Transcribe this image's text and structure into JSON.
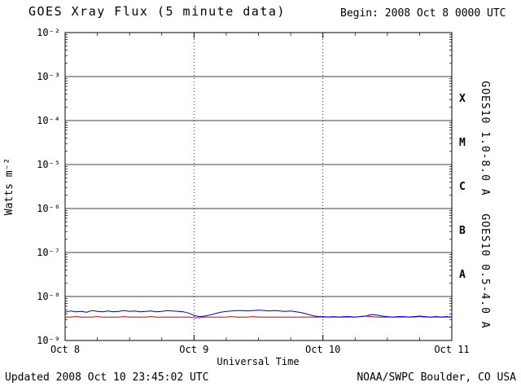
{
  "title": "GOES Xray Flux (5 minute data)",
  "begin_label": "Begin: 2008 Oct 8 0000 UTC",
  "footer": {
    "updated": "Updated 2008 Oct 10 23:45:02 UTC",
    "source": "NOAA/SWPC Boulder, CO USA"
  },
  "chart_data": {
    "type": "line",
    "title": "GOES Xray Flux (5 minute data)",
    "xlabel": "Universal Time",
    "ylabel": "Watts m⁻²",
    "ylim": [
      1e-09,
      0.01
    ],
    "y_scale": "log",
    "x_range_hours": [
      0,
      72
    ],
    "x_tick_hours": [
      0,
      24,
      48,
      72
    ],
    "x_ticks": [
      "Oct 8",
      "Oct 9",
      "Oct 10",
      "Oct 11"
    ],
    "x_minor_step_hours": 6,
    "y_ticks": [
      "10⁻²",
      "10⁻³",
      "10⁻⁴",
      "10⁻⁵",
      "10⁻⁶",
      "10⁻⁷",
      "10⁻⁸",
      "10⁻⁹"
    ],
    "grid": {
      "horizontal_decades": "solid",
      "vertical_days": "dotted",
      "legend_position": "right-rotated"
    },
    "flare_classes": [
      {
        "label": "X",
        "center_exponent": -3.5
      },
      {
        "label": "M",
        "center_exponent": -4.5
      },
      {
        "label": "C",
        "center_exponent": -5.5
      },
      {
        "label": "B",
        "center_exponent": -6.5
      },
      {
        "label": "A",
        "center_exponent": -7.5
      }
    ],
    "x_hours": [
      0,
      1,
      2,
      3,
      4,
      5,
      6,
      7,
      8,
      9,
      10,
      11,
      12,
      13,
      14,
      15,
      16,
      17,
      18,
      19,
      20,
      21,
      22,
      23,
      24,
      25,
      26,
      27,
      28,
      29,
      30,
      31,
      32,
      33,
      34,
      35,
      36,
      37,
      38,
      39,
      40,
      41,
      42,
      43,
      44,
      45,
      46,
      47,
      48,
      49,
      50,
      51,
      52,
      53,
      54,
      55,
      56,
      57,
      58,
      59,
      60,
      61,
      62,
      63,
      64,
      65,
      66,
      67,
      68,
      69,
      70,
      71,
      72
    ],
    "series": [
      {
        "name": "GOES10 1.0-8.0 A",
        "color": "#c80000",
        "values": [
          3.4e-09,
          3.4e-09,
          3.5e-09,
          3.4e-09,
          3.4e-09,
          3.4e-09,
          3.5e-09,
          3.4e-09,
          3.4e-09,
          3.4e-09,
          3.4e-09,
          3.5e-09,
          3.4e-09,
          3.4e-09,
          3.4e-09,
          3.4e-09,
          3.5e-09,
          3.4e-09,
          3.4e-09,
          3.4e-09,
          3.4e-09,
          3.4e-09,
          3.4e-09,
          3.4e-09,
          3.3e-09,
          3.3e-09,
          3.4e-09,
          3.4e-09,
          3.4e-09,
          3.4e-09,
          3.4e-09,
          3.5e-09,
          3.4e-09,
          3.4e-09,
          3.4e-09,
          3.5e-09,
          3.4e-09,
          3.4e-09,
          3.4e-09,
          3.4e-09,
          3.4e-09,
          3.4e-09,
          3.4e-09,
          3.4e-09,
          3.4e-09,
          3.4e-09,
          3.4e-09,
          3.4e-09,
          3.4e-09,
          3.4e-09,
          3.4e-09,
          3.4e-09,
          3.4e-09,
          3.4e-09,
          3.4e-09,
          3.5e-09,
          3.6e-09,
          3.5e-09,
          3.4e-09,
          3.4e-09,
          3.4e-09,
          3.4e-09,
          3.4e-09,
          3.4e-09,
          3.4e-09,
          3.4e-09,
          3.5e-09,
          3.4e-09,
          3.4e-09,
          3.4e-09,
          3.4e-09,
          3.4e-09,
          3.4e-09
        ]
      },
      {
        "name": "GOES10 0.5-4.0 A",
        "color": "#0000c8",
        "values": [
          4.4e-09,
          4.7e-09,
          4.5e-09,
          4.6e-09,
          4.4e-09,
          4.8e-09,
          4.6e-09,
          4.5e-09,
          4.7e-09,
          4.5e-09,
          4.6e-09,
          4.8e-09,
          4.6e-09,
          4.7e-09,
          4.5e-09,
          4.6e-09,
          4.7e-09,
          4.5e-09,
          4.6e-09,
          4.8e-09,
          4.7e-09,
          4.6e-09,
          4.5e-09,
          4.2e-09,
          3.7e-09,
          3.5e-09,
          3.6e-09,
          3.8e-09,
          4.1e-09,
          4.4e-09,
          4.6e-09,
          4.7e-09,
          4.8e-09,
          4.8e-09,
          4.7e-09,
          4.8e-09,
          4.9e-09,
          4.8e-09,
          4.7e-09,
          4.8e-09,
          4.7e-09,
          4.6e-09,
          4.7e-09,
          4.5e-09,
          4.3e-09,
          4e-09,
          3.7e-09,
          3.5e-09,
          3.5e-09,
          3.4e-09,
          3.5e-09,
          3.4e-09,
          3.5e-09,
          3.5e-09,
          3.4e-09,
          3.5e-09,
          3.6e-09,
          3.9e-09,
          3.8e-09,
          3.6e-09,
          3.5e-09,
          3.4e-09,
          3.5e-09,
          3.5e-09,
          3.4e-09,
          3.5e-09,
          3.6e-09,
          3.5e-09,
          3.4e-09,
          3.5e-09,
          3.4e-09,
          3.5e-09,
          3.4e-09
        ]
      }
    ]
  }
}
